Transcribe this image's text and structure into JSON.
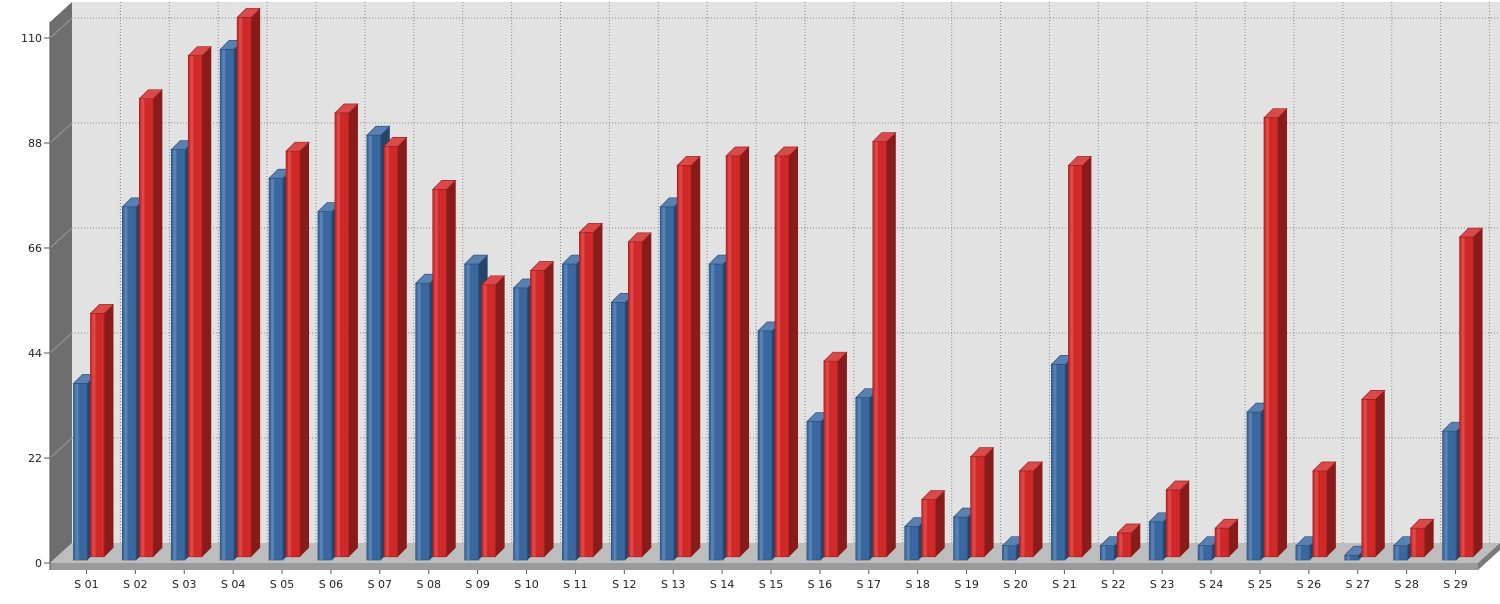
{
  "chart_data": {
    "type": "bar",
    "style": "3d-cylinder",
    "categories": [
      "S 01",
      "S 02",
      "S 03",
      "S 04",
      "S 05",
      "S 06",
      "S 07",
      "S 08",
      "S 09",
      "S 10",
      "S 11",
      "S 12",
      "S 13",
      "S 14",
      "S 15",
      "S 16",
      "S 17",
      "S 18",
      "S 19",
      "S 20",
      "S 21",
      "S 22",
      "S 23",
      "S 24",
      "S 25",
      "S 26",
      "S 27",
      "S 28",
      "S 29"
    ],
    "series": [
      {
        "color": "#3B6AA3",
        "values": [
          37,
          74,
          86,
          107,
          80,
          73,
          89,
          58,
          62,
          57,
          62,
          54,
          74,
          62,
          48,
          29,
          34,
          7,
          9,
          3,
          41,
          3,
          8,
          3,
          31,
          3,
          1,
          3,
          27
        ]
      },
      {
        "color": "#D42A2A",
        "values": [
          51,
          96,
          105,
          113,
          85,
          93,
          86,
          77,
          57,
          60,
          68,
          66,
          82,
          84,
          84,
          41,
          87,
          12,
          21,
          18,
          82,
          5,
          14,
          6,
          92,
          18,
          33,
          6,
          67
        ]
      }
    ],
    "ylim": [
      0,
      110
    ],
    "yticks": [
      0,
      22,
      44,
      66,
      88,
      110
    ],
    "grid": true,
    "legend": "none",
    "title": "",
    "xlabel": "",
    "ylabel": ""
  }
}
